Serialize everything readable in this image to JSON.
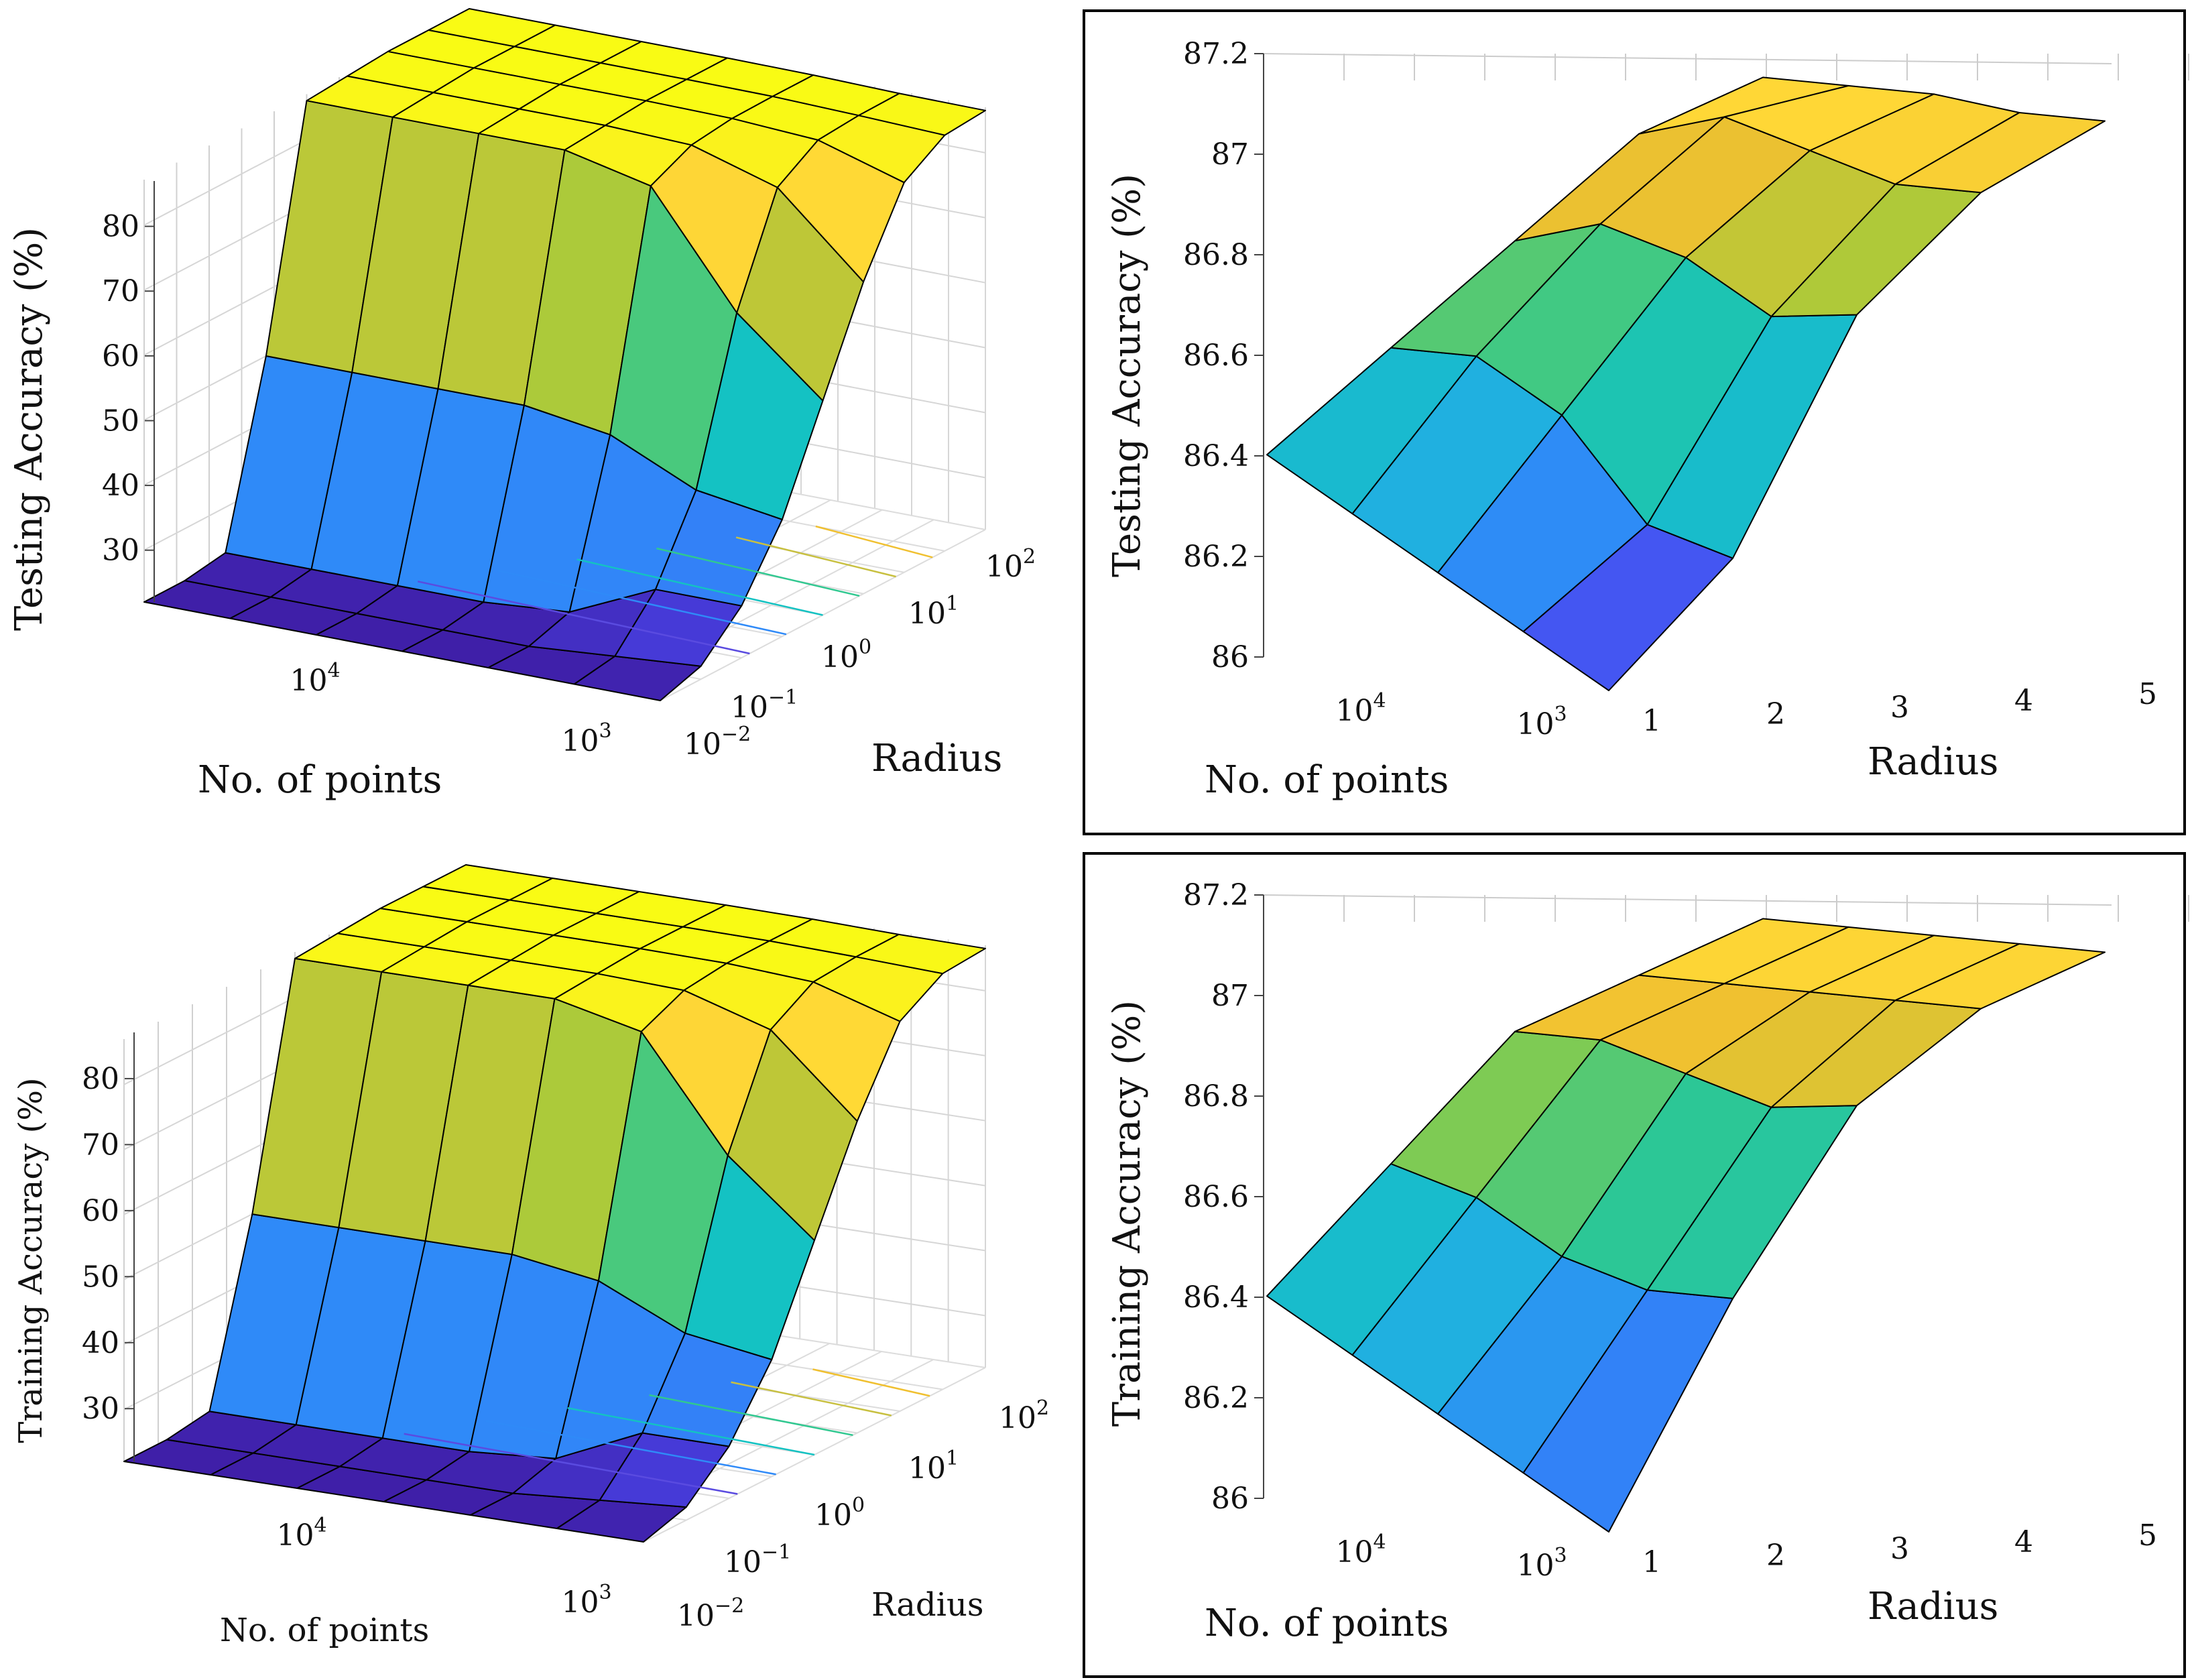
{
  "chart_data": [
    {
      "type": "surface3d",
      "panel": "top-left",
      "zlabel": "Testing Accuracy (%)",
      "xlabel": "No. of points",
      "ylabel": "Radius",
      "z_ticks": [
        "30",
        "40",
        "50",
        "60",
        "70",
        "80"
      ],
      "x_ticks": [
        {
          "base": "10",
          "exp": "4"
        },
        {
          "base": "10",
          "exp": "3"
        }
      ],
      "y_ticks": [
        {
          "base": "10",
          "exp": "−2"
        },
        {
          "base": "10",
          "exp": "−1"
        },
        {
          "base": "10",
          "exp": "0"
        },
        {
          "base": "10",
          "exp": "1"
        },
        {
          "base": "10",
          "exp": "2"
        }
      ],
      "zlim": [
        22,
        87
      ],
      "radius_levels": [
        0.01,
        0.03,
        0.1,
        0.3,
        1,
        3,
        10,
        30,
        100
      ],
      "series": [
        {
          "points": 50000,
          "z": [
            22,
            22,
            23,
            50,
            86,
            86.5,
            87,
            87,
            87
          ]
        },
        {
          "points": 25000,
          "z": [
            22,
            22,
            23,
            50,
            86,
            86.5,
            87,
            87,
            87
          ]
        },
        {
          "points": 12000,
          "z": [
            22,
            22,
            23,
            50,
            86,
            86.5,
            87,
            87,
            87
          ]
        },
        {
          "points": 6000,
          "z": [
            22,
            22,
            23,
            50,
            86,
            86.5,
            87,
            87,
            87
          ]
        },
        {
          "points": 3000,
          "z": [
            22,
            22,
            24,
            48,
            83,
            86,
            86.8,
            86.9,
            86.9
          ]
        },
        {
          "points": 1500,
          "z": [
            22,
            23,
            30,
            42,
            66,
            82,
            86,
            86.5,
            86.6
          ]
        },
        {
          "points": 1000,
          "z": [
            22,
            24,
            30,
            40,
            55,
            70,
            82,
            86,
            86.5
          ]
        }
      ],
      "colorscale": [
        "#3f1fa8",
        "#4a48f0",
        "#2f8af8",
        "#20b0e0",
        "#14c2c2",
        "#30c890",
        "#9ccc3c",
        "#f0c030",
        "#ffd836",
        "#f9fb14"
      ]
    },
    {
      "type": "surface3d",
      "panel": "top-right",
      "zlabel": "Testing Accuracy (%)",
      "xlabel": "No. of points",
      "ylabel": "Radius",
      "z_ticks": [
        "86",
        "86.2",
        "86.4",
        "86.6",
        "86.8",
        "87",
        "87.2"
      ],
      "x_ticks": [
        {
          "base": "10",
          "exp": "4"
        },
        {
          "base": "10",
          "exp": "3"
        }
      ],
      "y_ticks": [
        "1",
        "2",
        "3",
        "4",
        "5"
      ],
      "zlim": [
        86,
        87.2
      ],
      "radius_levels": [
        1,
        2,
        3,
        4,
        5
      ],
      "series": [
        {
          "points": 20000,
          "z": [
            86.4,
            86.6,
            86.8,
            87.0,
            87.1
          ]
        },
        {
          "points": 10000,
          "z": [
            86.3,
            86.6,
            86.85,
            87.05,
            87.1
          ]
        },
        {
          "points": 5000,
          "z": [
            86.2,
            86.5,
            86.8,
            87.0,
            87.1
          ]
        },
        {
          "points": 2500,
          "z": [
            86.1,
            86.3,
            86.7,
            86.95,
            87.08
          ]
        },
        {
          "points": 1000,
          "z": [
            86.0,
            86.25,
            86.72,
            86.95,
            87.08
          ]
        }
      ],
      "colorscale": [
        "#3f1fa8",
        "#4a48f0",
        "#2f8af8",
        "#20b0e0",
        "#14c2c2",
        "#30c890",
        "#9ccc3c",
        "#f0c030",
        "#ffd836",
        "#f9fb14"
      ]
    },
    {
      "type": "surface3d",
      "panel": "bottom-left",
      "zlabel": "Training Accuracy (%)",
      "xlabel": "No. of points",
      "ylabel": "Radius",
      "z_ticks": [
        "30",
        "40",
        "50",
        "60",
        "70",
        "80"
      ],
      "x_ticks": [
        {
          "base": "10",
          "exp": "4"
        },
        {
          "base": "10",
          "exp": "3"
        }
      ],
      "y_ticks": [
        {
          "base": "10",
          "exp": "−2"
        },
        {
          "base": "10",
          "exp": "−1"
        },
        {
          "base": "10",
          "exp": "0"
        },
        {
          "base": "10",
          "exp": "1"
        },
        {
          "base": "10",
          "exp": "2"
        }
      ],
      "zlim": [
        22,
        87
      ],
      "radius_levels": [
        0.01,
        0.03,
        0.1,
        0.3,
        1,
        3,
        10,
        30,
        100
      ],
      "series": [
        {
          "points": 50000,
          "z": [
            22,
            22,
            23,
            50,
            86,
            86.5,
            87,
            87,
            87
          ]
        },
        {
          "points": 25000,
          "z": [
            22,
            22,
            23,
            50,
            86,
            86.5,
            87,
            87,
            87
          ]
        },
        {
          "points": 12000,
          "z": [
            22,
            22,
            23,
            50,
            86,
            86.5,
            87,
            87,
            87
          ]
        },
        {
          "points": 6000,
          "z": [
            22,
            22,
            23,
            50,
            86,
            86.5,
            87,
            87,
            87
          ]
        },
        {
          "points": 3000,
          "z": [
            22,
            22,
            24,
            48,
            83,
            86,
            86.8,
            86.9,
            86.9
          ]
        },
        {
          "points": 1500,
          "z": [
            22,
            23,
            30,
            42,
            66,
            82,
            86,
            86.5,
            86.6
          ]
        },
        {
          "points": 1000,
          "z": [
            22,
            24,
            30,
            40,
            55,
            70,
            82,
            86,
            86.5
          ]
        }
      ],
      "colorscale": [
        "#3f1fa8",
        "#4a48f0",
        "#2f8af8",
        "#20b0e0",
        "#14c2c2",
        "#30c890",
        "#9ccc3c",
        "#f0c030",
        "#ffd836",
        "#f9fb14"
      ]
    },
    {
      "type": "surface3d",
      "panel": "bottom-right",
      "zlabel": "Training Accuracy (%)",
      "xlabel": "No. of points",
      "ylabel": "Radius",
      "z_ticks": [
        "86",
        "86.2",
        "86.4",
        "86.6",
        "86.8",
        "87",
        "87.2"
      ],
      "x_ticks": [
        {
          "base": "10",
          "exp": "4"
        },
        {
          "base": "10",
          "exp": "3"
        }
      ],
      "y_ticks": [
        "1",
        "2",
        "3",
        "4",
        "5"
      ],
      "zlim": [
        86,
        87.2
      ],
      "radius_levels": [
        1,
        2,
        3,
        4,
        5
      ],
      "series": [
        {
          "points": 20000,
          "z": [
            86.4,
            86.65,
            86.9,
            87.0,
            87.1
          ]
        },
        {
          "points": 10000,
          "z": [
            86.3,
            86.6,
            86.9,
            87.0,
            87.1
          ]
        },
        {
          "points": 5000,
          "z": [
            86.2,
            86.5,
            86.85,
            87.0,
            87.1
          ]
        },
        {
          "points": 2500,
          "z": [
            86.1,
            86.45,
            86.8,
            87.0,
            87.1
          ]
        },
        {
          "points": 1000,
          "z": [
            86.0,
            86.45,
            86.82,
            87.0,
            87.1
          ]
        }
      ],
      "colorscale": [
        "#3f1fa8",
        "#4a48f0",
        "#2f8af8",
        "#20b0e0",
        "#14c2c2",
        "#30c890",
        "#9ccc3c",
        "#f0c030",
        "#ffd836",
        "#f9fb14"
      ]
    }
  ]
}
